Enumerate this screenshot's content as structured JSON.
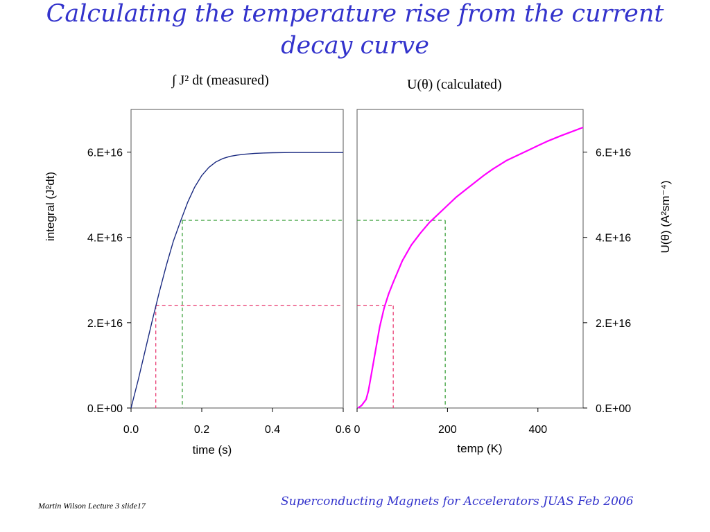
{
  "slide": {
    "title_line1": "Calculating the temperature rise from the current",
    "title_line2": "decay curve",
    "footer_left": "Martin Wilson Lecture 3 slide17",
    "footer_right": "Superconducting Magnets for Accelerators JUAS Feb 2006",
    "colors": {
      "title": "#3333cc",
      "measured_curve": "#1a2a80",
      "calculated_curve": "#ff00ff",
      "guide_red": "#e8306a",
      "guide_green": "#2e9a2e"
    }
  },
  "chart_data": [
    {
      "type": "line",
      "title": "∫ J² dt  (measured)",
      "xlabel": "time (s)",
      "ylabel": "integral (J²dt)",
      "xlim": [
        0,
        0.6
      ],
      "ylim": [
        0,
        7e+16
      ],
      "x_ticks": [
        {
          "value": 0.0,
          "label": "0.0"
        },
        {
          "value": 0.2,
          "label": "0.2"
        },
        {
          "value": 0.4,
          "label": "0.4"
        },
        {
          "value": 0.6,
          "label": "0.6"
        }
      ],
      "y_ticks": [
        {
          "value": 0,
          "label": "0.E+00"
        },
        {
          "value": 2e+16,
          "label": "2.E+16"
        },
        {
          "value": 4e+16,
          "label": "4.E+16"
        },
        {
          "value": 6e+16,
          "label": "6.E+16"
        }
      ],
      "series": [
        {
          "x": [
            0,
            0.02,
            0.04,
            0.06,
            0.08,
            0.1,
            0.12,
            0.14,
            0.16,
            0.18,
            0.2,
            0.22,
            0.24,
            0.26,
            0.28,
            0.3,
            0.32,
            0.35,
            0.38,
            0.4,
            0.45,
            0.5,
            0.55,
            0.6
          ],
          "y": [
            0,
            6500000000000000.0,
            1.35e+16,
            2.05e+16,
            2.72e+16,
            3.35e+16,
            3.92e+16,
            4.38e+16,
            4.82e+16,
            5.18e+16,
            5.45e+16,
            5.64e+16,
            5.77e+16,
            5.85e+16,
            5.9e+16,
            5.93e+16,
            5.95e+16,
            5.97e+16,
            5.98e+16,
            5.985e+16,
            5.99e+16,
            5.99e+16,
            5.99e+16,
            5.99e+16
          ]
        }
      ],
      "guides": [
        {
          "x": 0.07,
          "y": 2.4e+16,
          "color": "red"
        },
        {
          "x": 0.145,
          "y": 4.4e+16,
          "color": "green"
        }
      ]
    },
    {
      "type": "line",
      "title": "U(θ) (calculated)",
      "xlabel": "temp (K)",
      "ylabel": "U(θ) (A²sm⁻⁴)",
      "xlim": [
        0,
        500
      ],
      "ylim": [
        0,
        7e+16
      ],
      "x_ticks": [
        {
          "value": 0,
          "label": "0"
        },
        {
          "value": 200,
          "label": "200"
        },
        {
          "value": 400,
          "label": "400"
        }
      ],
      "y_ticks": [
        {
          "value": 0,
          "label": "0.E+00"
        },
        {
          "value": 2e+16,
          "label": "2.E+16"
        },
        {
          "value": 4e+16,
          "label": "4.E+16"
        },
        {
          "value": 6e+16,
          "label": "6.E+16"
        }
      ],
      "series": [
        {
          "x": [
            2,
            10,
            20,
            25,
            30,
            40,
            50,
            60,
            70,
            80,
            90,
            100,
            120,
            140,
            160,
            180,
            200,
            220,
            250,
            280,
            300,
            330,
            350,
            380,
            400,
            420,
            450,
            480,
            500
          ],
          "y": [
            0,
            600000000000000.0,
            2000000000000000.0,
            4000000000000000.0,
            7000000000000000.0,
            1.3e+16,
            1.9e+16,
            2.35e+16,
            2.68e+16,
            2.95e+16,
            3.2e+16,
            3.45e+16,
            3.82e+16,
            4.1e+16,
            4.35e+16,
            4.55e+16,
            4.75e+16,
            4.95e+16,
            5.2e+16,
            5.45e+16,
            5.6e+16,
            5.8e+16,
            5.9e+16,
            6.05e+16,
            6.15e+16,
            6.25e+16,
            6.38e+16,
            6.5e+16,
            6.58e+16
          ]
        }
      ],
      "guides": [
        {
          "x": 80,
          "y": 2.4e+16,
          "color": "red"
        },
        {
          "x": 195,
          "y": 4.4e+16,
          "color": "green"
        }
      ]
    }
  ]
}
